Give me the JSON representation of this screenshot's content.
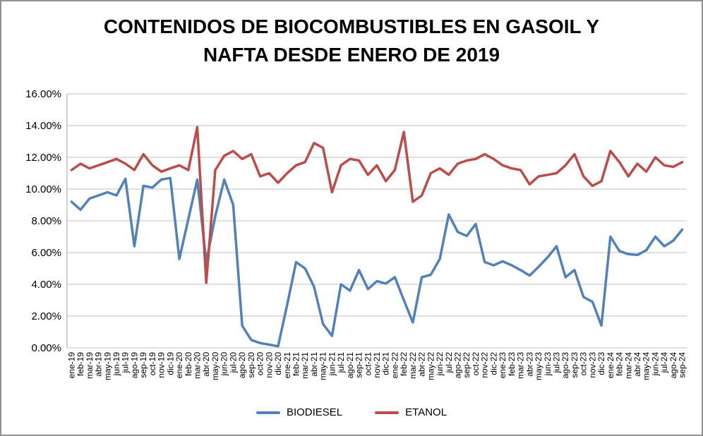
{
  "title_lines": [
    "CONTENIDOS DE BIOCOMBUSTIBLES EN GASOIL Y",
    "NAFTA DESDE ENERO DE 2019"
  ],
  "colors": {
    "biodiesel": "#4F81BD",
    "etanol": "#BE4B48",
    "gridline": "#BFBFBF",
    "axis": "#A6A6A6",
    "text": "#000000",
    "border": "#919191"
  },
  "legend": {
    "entries": [
      {
        "label": "BIODIESEL",
        "color": "#4F81BD"
      },
      {
        "label": "ETANOL",
        "color": "#BE4B48"
      }
    ]
  },
  "chart_data": {
    "type": "line",
    "title": "CONTENIDOS DE BIOCOMBUSTIBLES EN GASOIL Y NAFTA DESDE ENERO DE 2019",
    "xlabel": "",
    "ylabel": "",
    "ylim": [
      0,
      16
    ],
    "ytick_step": 2,
    "y_ticks": [
      "0.00%",
      "2.00%",
      "4.00%",
      "6.00%",
      "8.00%",
      "10.00%",
      "12.00%",
      "14.00%",
      "16.00%"
    ],
    "grid": true,
    "legend_position": "bottom",
    "unit": "percent",
    "categories": [
      "ene-19",
      "feb-19",
      "mar-19",
      "abr-19",
      "may-19",
      "jun-19",
      "jul-19",
      "ago-19",
      "sep-19",
      "oct-19",
      "nov-19",
      "dic-19",
      "ene-20",
      "feb-20",
      "mar-20",
      "abr-20",
      "may-20",
      "jun-20",
      "jul-20",
      "ago-20",
      "sep-20",
      "oct-20",
      "nov-20",
      "dic-20",
      "ene-21",
      "feb-21",
      "mar-21",
      "abr-21",
      "may-21",
      "jun-21",
      "jul-21",
      "ago-21",
      "sep-21",
      "oct-21",
      "nov-21",
      "dic-21",
      "ene-22",
      "feb-22",
      "mar-22",
      "abr-22",
      "may-22",
      "jun-22",
      "jul-22",
      "ago-22",
      "sep-22",
      "oct-22",
      "nov-22",
      "dic-22",
      "ene-23",
      "feb-23",
      "mar-23",
      "abr-23",
      "may-23",
      "jun-23",
      "jul-23",
      "ago-23",
      "sep-23",
      "oct-23",
      "nov-23",
      "dic-23",
      "ene-24",
      "feb-24",
      "mar-24",
      "abr-24",
      "may-24",
      "jun-24",
      "jul-24",
      "ago-24",
      "sep-24"
    ],
    "series": [
      {
        "name": "BIODIESEL",
        "color": "#4F81BD",
        "values": [
          9.2,
          8.7,
          9.4,
          9.6,
          9.8,
          9.6,
          10.65,
          6.4,
          10.2,
          10.1,
          10.6,
          10.7,
          5.6,
          8.1,
          10.6,
          5.4,
          8.3,
          10.6,
          9.0,
          1.4,
          0.5,
          0.3,
          0.2,
          0.1,
          2.7,
          5.4,
          5.0,
          3.85,
          1.5,
          0.75,
          4.0,
          3.6,
          4.9,
          3.7,
          4.2,
          4.05,
          4.45,
          3.0,
          1.6,
          4.45,
          4.6,
          5.6,
          8.4,
          7.3,
          7.05,
          7.8,
          5.4,
          5.2,
          5.45,
          5.2,
          4.9,
          4.55,
          5.1,
          5.7,
          6.4,
          4.45,
          4.9,
          3.2,
          2.9,
          1.4,
          7.0,
          6.1,
          5.9,
          5.85,
          6.15,
          7.0,
          6.4,
          6.75,
          7.45
        ]
      },
      {
        "name": "ETANOL",
        "color": "#BE4B48",
        "values": [
          11.2,
          11.6,
          11.3,
          11.5,
          11.7,
          11.9,
          11.6,
          11.2,
          12.2,
          11.5,
          11.1,
          11.3,
          11.5,
          11.2,
          13.9,
          4.1,
          11.2,
          12.1,
          12.4,
          11.9,
          12.2,
          10.8,
          11.0,
          10.4,
          11.0,
          11.5,
          11.7,
          12.9,
          12.6,
          9.8,
          11.5,
          11.9,
          11.8,
          10.9,
          11.5,
          10.5,
          11.2,
          13.6,
          9.2,
          9.6,
          11.0,
          11.3,
          10.9,
          11.6,
          11.8,
          11.9,
          12.2,
          11.9,
          11.5,
          11.3,
          11.2,
          10.3,
          10.8,
          10.9,
          11.0,
          11.5,
          12.2,
          10.8,
          10.2,
          10.5,
          12.4,
          11.7,
          10.8,
          11.6,
          11.1,
          12.0,
          11.5,
          11.4,
          11.7
        ]
      }
    ]
  }
}
